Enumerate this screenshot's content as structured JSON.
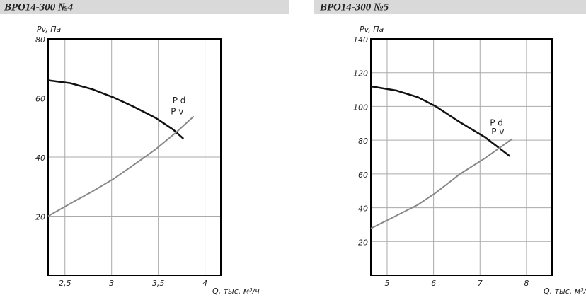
{
  "chart_data": [
    {
      "type": "line",
      "title": "ВРО14-300 №4",
      "y_label": "Pv, Па",
      "x_label": "Q, тыс. м³/ч",
      "xlim": [
        2.32,
        4.17
      ],
      "ylim": [
        0,
        80
      ],
      "xticks": [
        {
          "value": 2.5,
          "label": "2,5"
        },
        3,
        {
          "value": 3.5,
          "label": "3,5"
        },
        4
      ],
      "yticks": [
        20,
        40,
        60,
        80
      ],
      "grid": true,
      "series": [
        {
          "name": "P v",
          "color": "#111111",
          "x": [
            2.32,
            2.56,
            2.79,
            3.02,
            3.24,
            3.47,
            3.66,
            3.77
          ],
          "values": [
            66,
            65,
            63,
            60.2,
            57,
            53.3,
            49.3,
            46.2
          ]
        },
        {
          "name": "P d",
          "color": "#888888",
          "x": [
            2.32,
            2.56,
            2.79,
            3.02,
            3.24,
            3.47,
            3.7,
            3.88
          ],
          "values": [
            20,
            24.3,
            28.3,
            32.6,
            37.4,
            42.6,
            48.6,
            53.8
          ]
        }
      ]
    },
    {
      "type": "line",
      "title": "ВРО14-300 №5",
      "y_label": "Pv, Па",
      "x_label": "Q, тыс. м³/ч",
      "xlim": [
        4.65,
        8.55
      ],
      "ylim": [
        0,
        140
      ],
      "xticks": [
        5,
        6,
        7,
        8
      ],
      "yticks": [
        20,
        40,
        60,
        80,
        100,
        120,
        140
      ],
      "grid": true,
      "series": [
        {
          "name": "P v",
          "color": "#111111",
          "x": [
            4.65,
            5.2,
            5.66,
            6.05,
            6.57,
            7.11,
            7.64
          ],
          "values": [
            111.9,
            109.4,
            105.5,
            100,
            90.6,
            81.7,
            70.6
          ]
        },
        {
          "name": "P d",
          "color": "#888888",
          "x": [
            4.65,
            5.2,
            5.66,
            6.05,
            6.57,
            7.11,
            7.7
          ],
          "values": [
            27.7,
            35.3,
            41.7,
            48.9,
            60,
            69.4,
            80.9
          ]
        }
      ]
    }
  ]
}
